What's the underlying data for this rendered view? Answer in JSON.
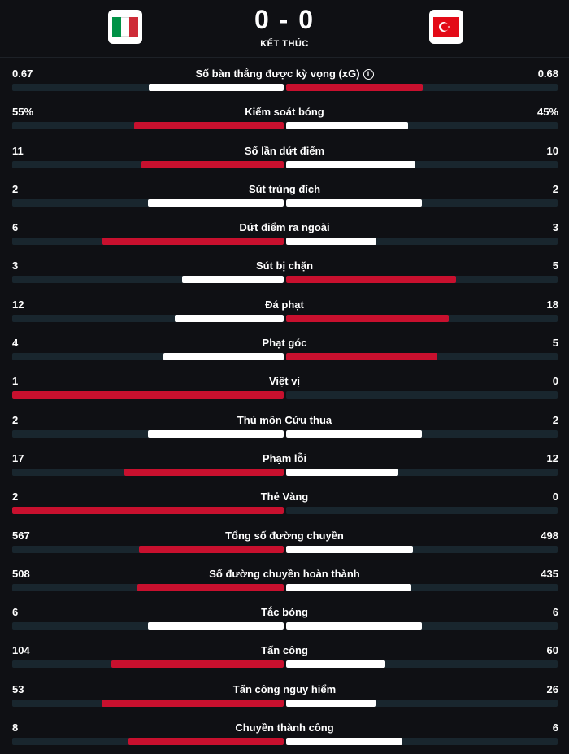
{
  "match": {
    "score": "0 - 0",
    "status": "KẾT THÚC",
    "home_flag": "italy-flag",
    "away_flag": "turkey-flag"
  },
  "colors": {
    "win": "#c8102e",
    "lose": "#ffffff",
    "track": "#19262e"
  },
  "stats": [
    {
      "label": "Số bàn thắng được kỳ vọng (xG)",
      "home": "0.67",
      "away": "0.68",
      "hv": 0.67,
      "av": 0.68,
      "info": true
    },
    {
      "label": "Kiểm soát bóng",
      "home": "55%",
      "away": "45%",
      "hv": 55,
      "av": 45
    },
    {
      "label": "Số lần dứt điểm",
      "home": "11",
      "away": "10",
      "hv": 11,
      "av": 10
    },
    {
      "label": "Sút trúng đích",
      "home": "2",
      "away": "2",
      "hv": 2,
      "av": 2
    },
    {
      "label": "Dứt điểm ra ngoài",
      "home": "6",
      "away": "3",
      "hv": 6,
      "av": 3
    },
    {
      "label": "Sút bị chặn",
      "home": "3",
      "away": "5",
      "hv": 3,
      "av": 5
    },
    {
      "label": "Đá phạt",
      "home": "12",
      "away": "18",
      "hv": 12,
      "av": 18
    },
    {
      "label": "Phạt góc",
      "home": "4",
      "away": "5",
      "hv": 4,
      "av": 5
    },
    {
      "label": "Việt vị",
      "home": "1",
      "away": "0",
      "hv": 1,
      "av": 0
    },
    {
      "label": "Thủ môn Cứu thua",
      "home": "2",
      "away": "2",
      "hv": 2,
      "av": 2
    },
    {
      "label": "Phạm lỗi",
      "home": "17",
      "away": "12",
      "hv": 17,
      "av": 12
    },
    {
      "label": "Thẻ Vàng",
      "home": "2",
      "away": "0",
      "hv": 2,
      "av": 0
    },
    {
      "label": "Tổng số đường chuyền",
      "home": "567",
      "away": "498",
      "hv": 567,
      "av": 498
    },
    {
      "label": "Số đường chuyền hoàn thành",
      "home": "508",
      "away": "435",
      "hv": 508,
      "av": 435
    },
    {
      "label": "Tắc bóng",
      "home": "6",
      "away": "6",
      "hv": 6,
      "av": 6
    },
    {
      "label": "Tấn công",
      "home": "104",
      "away": "60",
      "hv": 104,
      "av": 60
    },
    {
      "label": "Tấn công nguy hiểm",
      "home": "53",
      "away": "26",
      "hv": 53,
      "av": 26
    },
    {
      "label": "Chuyền thành công",
      "home": "8",
      "away": "6",
      "hv": 8,
      "av": 6
    }
  ]
}
